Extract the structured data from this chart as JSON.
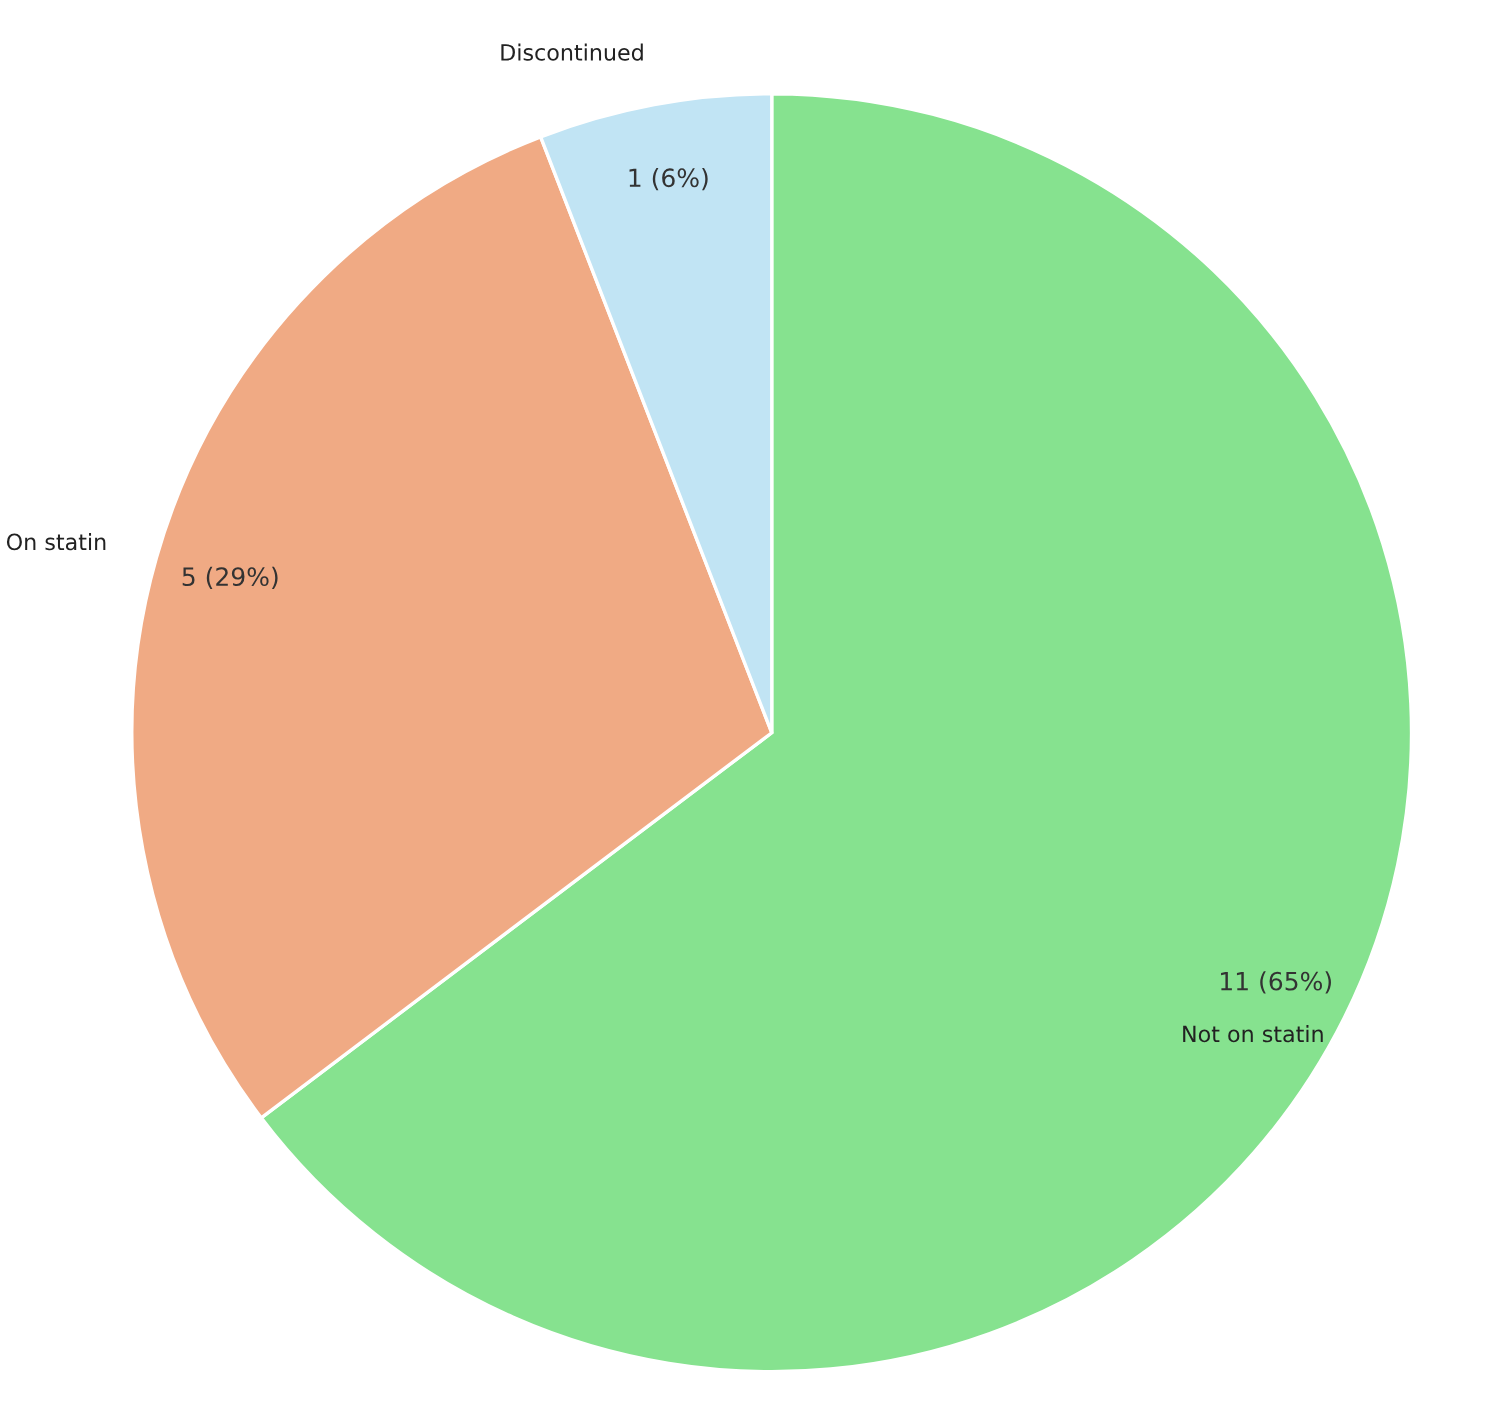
{
  "chart_data": {
    "type": "pie",
    "categories": [
      "Not on statin",
      "On statin",
      "Discontinued"
    ],
    "values": [
      11,
      5,
      1
    ],
    "value_labels": [
      "11 (65%)",
      "5 (29%)",
      "1 (6%)"
    ],
    "colors": [
      "#86e28f",
      "#f0aa84",
      "#c1e4f4"
    ],
    "legend": false
  }
}
